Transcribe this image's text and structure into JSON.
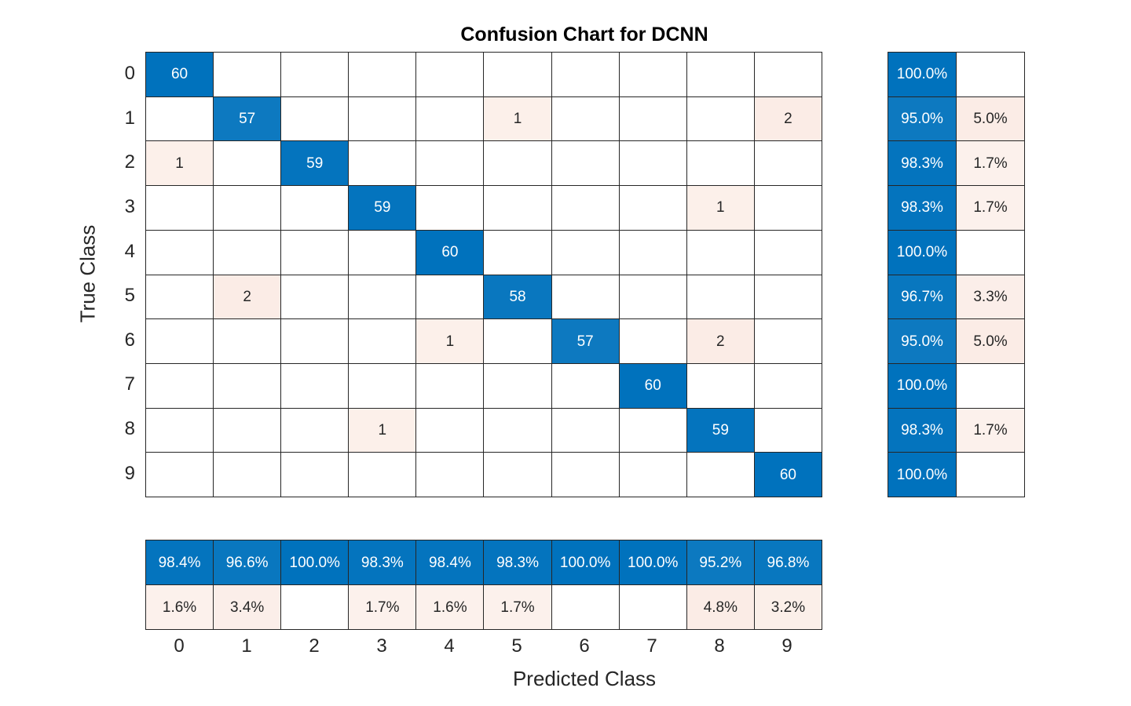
{
  "title": "Confusion Chart for DCNN",
  "chart_data": {
    "type": "heatmap",
    "subtype": "confusion-matrix",
    "title": "Confusion Chart for DCNN",
    "xlabel": "Predicted Class",
    "ylabel": "True Class",
    "classes": [
      "0",
      "1",
      "2",
      "3",
      "4",
      "5",
      "6",
      "7",
      "8",
      "9"
    ],
    "matrix": [
      [
        60,
        0,
        0,
        0,
        0,
        0,
        0,
        0,
        0,
        0
      ],
      [
        0,
        57,
        0,
        0,
        0,
        1,
        0,
        0,
        0,
        2
      ],
      [
        1,
        0,
        59,
        0,
        0,
        0,
        0,
        0,
        0,
        0
      ],
      [
        0,
        0,
        0,
        59,
        0,
        0,
        0,
        0,
        1,
        0
      ],
      [
        0,
        0,
        0,
        0,
        60,
        0,
        0,
        0,
        0,
        0
      ],
      [
        0,
        2,
        0,
        0,
        0,
        58,
        0,
        0,
        0,
        0
      ],
      [
        0,
        0,
        0,
        0,
        1,
        0,
        57,
        0,
        2,
        0
      ],
      [
        0,
        0,
        0,
        0,
        0,
        0,
        0,
        60,
        0,
        0
      ],
      [
        0,
        0,
        0,
        1,
        0,
        0,
        0,
        0,
        59,
        0
      ],
      [
        0,
        0,
        0,
        0,
        0,
        0,
        0,
        0,
        0,
        60
      ]
    ],
    "row_summary_correct_pct": [
      100.0,
      95.0,
      98.3,
      98.3,
      100.0,
      96.7,
      95.0,
      100.0,
      98.3,
      100.0
    ],
    "row_summary_incorrect_pct": [
      null,
      5.0,
      1.7,
      1.7,
      null,
      3.3,
      5.0,
      null,
      1.7,
      null
    ],
    "col_summary_correct_pct": [
      98.4,
      96.6,
      100.0,
      98.3,
      98.4,
      98.3,
      100.0,
      100.0,
      95.2,
      96.8
    ],
    "col_summary_incorrect_pct": [
      1.6,
      3.4,
      null,
      1.7,
      1.6,
      1.7,
      null,
      null,
      4.8,
      3.2
    ],
    "grid": true,
    "legend_position": "none",
    "colors": {
      "diagonal": "#0072BD",
      "off_diagonal": "#D95319",
      "grid_line": "#262626",
      "text_on_fill": "#FFFFFF",
      "text_default": "#262626",
      "title_color": "#000000"
    }
  }
}
